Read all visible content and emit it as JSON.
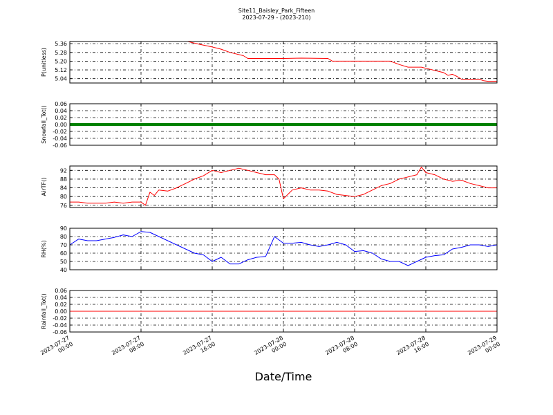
{
  "chart_data": {
    "title": "Site11_Baisley_Park_Fifteen",
    "subtitle": "2023-07-29 - (2023-210)",
    "xlabel": "Date/Time",
    "x_ticks": [
      "2023-07-27 00:00",
      "2023-07-27 08:00",
      "2023-07-27 16:00",
      "2023-07-28 00:00",
      "2023-07-28 08:00",
      "2023-07-28 16:00",
      "2023-07-29 00:00"
    ],
    "x_range": [
      "2023-07-27 00:00",
      "2023-07-29 00:00"
    ],
    "grid": true,
    "panels": [
      {
        "type": "line",
        "ylabel": "P(unitless)",
        "color": "#ff0000",
        "ylim": [
          5.0,
          5.38
        ],
        "yticks": [
          "5.04",
          "5.12",
          "5.20",
          "5.28",
          "5.36"
        ],
        "series": [
          {
            "x": [
              "2023-07-27 00:00",
              "2023-07-27 13:15",
              "2023-07-27 14:30",
              "2023-07-27 16:00",
              "2023-07-27 17:00",
              "2023-07-27 18:00",
              "2023-07-27 19:30",
              "2023-07-27 20:00",
              "2023-07-27 22:00",
              "2023-07-28 00:00",
              "2023-07-28 02:00",
              "2023-07-28 05:00",
              "2023-07-28 05:30",
              "2023-07-28 08:00",
              "2023-07-28 10:00",
              "2023-07-28 12:00",
              "2023-07-28 13:00",
              "2023-07-28 14:00",
              "2023-07-28 15:30",
              "2023-07-28 17:00",
              "2023-07-28 18:00",
              "2023-07-28 18:30",
              "2023-07-28 19:00",
              "2023-07-28 19:30",
              "2023-07-28 20:00",
              "2023-07-28 22:00",
              "2023-07-28 22:30",
              "2023-07-28 23:00",
              "2023-07-29 00:00"
            ],
            "y": [
              5.38,
              5.38,
              5.355,
              5.33,
              5.31,
              5.28,
              5.25,
              5.225,
              5.225,
              5.225,
              5.228,
              5.225,
              5.2,
              5.2,
              5.2,
              5.2,
              5.17,
              5.145,
              5.145,
              5.115,
              5.095,
              5.07,
              5.08,
              5.06,
              5.035,
              5.035,
              5.02,
              5.015,
              5.015
            ]
          }
        ]
      },
      {
        "type": "line",
        "ylabel": "Snowfall_Tot()",
        "color": "#008000",
        "ylim": [
          -0.06,
          0.06
        ],
        "yticks": [
          "-0.06",
          "-0.04",
          "-0.02",
          "0.00",
          "0.02",
          "0.04",
          "0.06"
        ],
        "series": [
          {
            "x": [
              "2023-07-27 00:00",
              "2023-07-29 00:00"
            ],
            "y": [
              0.0,
              0.0
            ]
          }
        ]
      },
      {
        "type": "line",
        "ylabel": "AirTF()",
        "color": "#ff0000",
        "ylim": [
          75,
          94
        ],
        "yticks": [
          "76",
          "80",
          "84",
          "88",
          "92"
        ],
        "series": [
          {
            "x": [
              "2023-07-27 00:00",
              "2023-07-27 01:00",
              "2023-07-27 02:00",
              "2023-07-27 03:00",
              "2023-07-27 04:00",
              "2023-07-27 05:00",
              "2023-07-27 06:00",
              "2023-07-27 07:00",
              "2023-07-27 08:00",
              "2023-07-27 08:30",
              "2023-07-27 09:00",
              "2023-07-27 09:30",
              "2023-07-27 10:00",
              "2023-07-27 11:00",
              "2023-07-27 12:00",
              "2023-07-27 13:00",
              "2023-07-27 14:00",
              "2023-07-27 15:00",
              "2023-07-27 16:00",
              "2023-07-27 17:00",
              "2023-07-27 18:00",
              "2023-07-27 19:00",
              "2023-07-27 20:00",
              "2023-07-27 21:00",
              "2023-07-27 22:00",
              "2023-07-27 23:00",
              "2023-07-27 23:30",
              "2023-07-28 00:00",
              "2023-07-28 01:00",
              "2023-07-28 02:00",
              "2023-07-28 03:00",
              "2023-07-28 04:00",
              "2023-07-28 05:00",
              "2023-07-28 06:00",
              "2023-07-28 07:00",
              "2023-07-28 08:00",
              "2023-07-28 09:00",
              "2023-07-28 10:00",
              "2023-07-28 11:00",
              "2023-07-28 12:00",
              "2023-07-28 13:00",
              "2023-07-28 14:00",
              "2023-07-28 15:00",
              "2023-07-28 15:30",
              "2023-07-28 16:00",
              "2023-07-28 17:00",
              "2023-07-28 18:00",
              "2023-07-28 19:00",
              "2023-07-28 20:00",
              "2023-07-28 21:00",
              "2023-07-28 22:00",
              "2023-07-28 23:00",
              "2023-07-29 00:00"
            ],
            "y": [
              77.5,
              77.5,
              77.0,
              77.0,
              77.0,
              77.5,
              77.0,
              77.5,
              77.5,
              76.0,
              82.0,
              80.5,
              83.0,
              82.5,
              84.0,
              86.0,
              88.0,
              89.5,
              92.0,
              91.0,
              92.0,
              93.0,
              92.0,
              91.0,
              90.0,
              90.0,
              88.0,
              79.0,
              83.0,
              84.0,
              83.0,
              83.0,
              82.5,
              81.0,
              80.5,
              80.0,
              81.0,
              83.0,
              85.0,
              86.0,
              88.0,
              89.0,
              90.0,
              93.5,
              91.0,
              90.0,
              88.0,
              87.0,
              87.5,
              86.0,
              85.0,
              84.0,
              84.0
            ]
          }
        ]
      },
      {
        "type": "line",
        "ylabel": "RH(%)",
        "color": "#0000ff",
        "ylim": [
          40,
          90
        ],
        "yticks": [
          "40",
          "50",
          "60",
          "70",
          "80",
          "90"
        ],
        "series": [
          {
            "x": [
              "2023-07-27 00:00",
              "2023-07-27 01:00",
              "2023-07-27 02:00",
              "2023-07-27 03:00",
              "2023-07-27 04:00",
              "2023-07-27 05:00",
              "2023-07-27 06:00",
              "2023-07-27 07:00",
              "2023-07-27 08:00",
              "2023-07-27 09:00",
              "2023-07-27 10:00",
              "2023-07-27 11:00",
              "2023-07-27 12:00",
              "2023-07-27 13:00",
              "2023-07-27 14:00",
              "2023-07-27 15:00",
              "2023-07-27 16:00",
              "2023-07-27 17:00",
              "2023-07-27 18:00",
              "2023-07-27 19:00",
              "2023-07-27 20:00",
              "2023-07-27 21:00",
              "2023-07-27 22:00",
              "2023-07-27 23:00",
              "2023-07-28 00:00",
              "2023-07-28 01:00",
              "2023-07-28 02:00",
              "2023-07-28 03:00",
              "2023-07-28 04:00",
              "2023-07-28 05:00",
              "2023-07-28 06:00",
              "2023-07-28 07:00",
              "2023-07-28 08:00",
              "2023-07-28 09:00",
              "2023-07-28 10:00",
              "2023-07-28 11:00",
              "2023-07-28 12:00",
              "2023-07-28 13:00",
              "2023-07-28 14:00",
              "2023-07-28 15:00",
              "2023-07-28 16:00",
              "2023-07-28 17:00",
              "2023-07-28 18:00",
              "2023-07-28 19:00",
              "2023-07-28 20:00",
              "2023-07-28 21:00",
              "2023-07-28 22:00",
              "2023-07-28 23:00",
              "2023-07-29 00:00"
            ],
            "y": [
              70,
              77,
              75,
              75,
              77,
              79,
              82,
              80,
              86,
              85,
              80,
              75,
              70,
              65,
              60,
              58,
              50,
              55,
              47,
              47,
              52,
              55,
              56,
              80,
              72,
              72,
              73,
              70,
              68,
              70,
              73,
              70,
              62,
              63,
              60,
              53,
              50,
              50,
              45,
              50,
              55,
              57,
              58,
              65,
              67,
              70,
              70,
              68,
              70
            ]
          }
        ]
      },
      {
        "type": "line",
        "ylabel": "Rainfall_Tot()",
        "color": "#ff0000",
        "ylim": [
          -0.06,
          0.06
        ],
        "yticks": [
          "-0.06",
          "-0.04",
          "-0.02",
          "0.00",
          "0.02",
          "0.04",
          "0.06"
        ],
        "series": [
          {
            "x": [
              "2023-07-27 00:00",
              "2023-07-29 00:00"
            ],
            "y": [
              0.0,
              0.0
            ]
          }
        ]
      }
    ]
  }
}
